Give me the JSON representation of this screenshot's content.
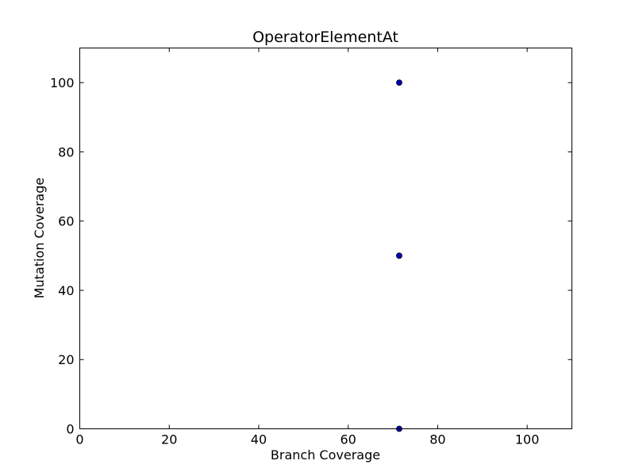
{
  "chart_data": {
    "type": "scatter",
    "title": "OperatorElementAt",
    "xlabel": "Branch Coverage",
    "ylabel": "Mutation Coverage",
    "xlim": [
      0,
      110
    ],
    "ylim": [
      0,
      110
    ],
    "xticks": [
      0,
      20,
      40,
      60,
      80,
      100
    ],
    "yticks": [
      0,
      20,
      40,
      60,
      80,
      100
    ],
    "grid": false,
    "series": [
      {
        "points": [
          {
            "x": 71.4,
            "y": 100
          },
          {
            "x": 71.4,
            "y": 50
          },
          {
            "x": 71.4,
            "y": 0
          }
        ]
      }
    ],
    "colors": {
      "marker_fill": "#0000bf",
      "marker_edge": "#000000",
      "axes": "#000000"
    }
  }
}
